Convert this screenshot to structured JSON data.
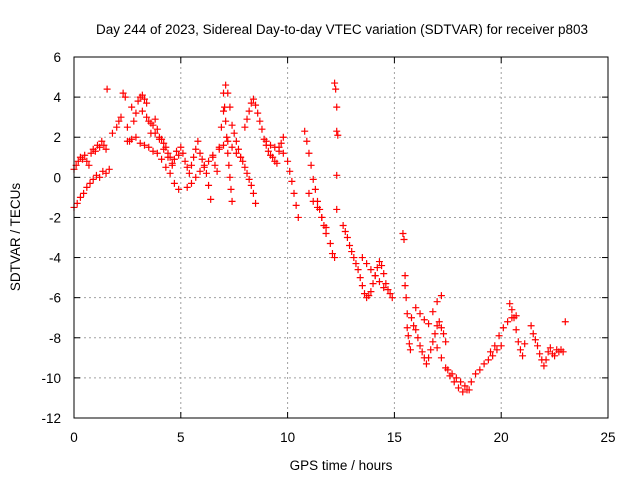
{
  "chart_data": {
    "type": "scatter",
    "title": "Day 244 of 2023, Sidereal Day-to-day VTEC variation (SDTVAR) for receiver p803",
    "xlabel": "GPS time / hours",
    "ylabel": "SDTVAR / TECUs",
    "xlim": [
      0,
      25
    ],
    "ylim": [
      -12,
      6
    ],
    "xticks": [
      0,
      5,
      10,
      15,
      20,
      25
    ],
    "yticks": [
      -12,
      -10,
      -8,
      -6,
      -4,
      -2,
      0,
      2,
      4,
      6
    ],
    "grid": true,
    "marker": "+",
    "series_color": "#ff0000",
    "series": [
      {
        "name": "SDTVAR",
        "x": [
          0.0,
          0.1,
          0.2,
          0.3,
          0.4,
          0.5,
          0.6,
          0.7,
          0.8,
          0.9,
          1.0,
          1.1,
          1.2,
          1.3,
          1.4,
          1.5,
          0.0,
          0.15,
          0.3,
          0.45,
          0.6,
          0.75,
          0.9,
          1.05,
          1.2,
          1.35,
          1.5,
          1.65,
          1.55,
          1.8,
          2.0,
          2.1,
          2.2,
          2.3,
          2.4,
          2.5,
          2.6,
          2.7,
          2.8,
          2.9,
          3.0,
          3.1,
          3.2,
          3.3,
          3.4,
          3.5,
          3.6,
          3.7,
          3.8,
          3.9,
          4.0,
          4.1,
          4.2,
          4.3,
          4.4,
          4.5,
          4.6,
          4.7,
          4.8,
          4.9,
          2.5,
          2.7,
          2.9,
          3.1,
          3.3,
          3.5,
          3.7,
          3.9,
          4.1,
          4.3,
          4.5,
          4.7,
          4.9,
          3.2,
          3.4,
          3.6,
          3.8,
          4.0,
          4.2,
          4.4,
          4.6,
          5.0,
          5.1,
          5.2,
          5.3,
          5.4,
          5.5,
          5.6,
          5.7,
          5.8,
          5.9,
          6.0,
          6.1,
          6.2,
          6.3,
          6.4,
          5.3,
          5.5,
          5.7,
          5.9,
          6.1,
          6.3,
          6.5,
          6.5,
          6.6,
          6.7,
          6.8,
          6.9,
          7.0,
          7.1,
          7.2,
          7.3,
          7.4,
          7.5,
          7.6,
          7.7,
          7.8,
          7.9,
          8.0,
          8.1,
          8.2,
          8.3,
          8.4,
          8.5,
          7.0,
          7.05,
          7.1,
          7.15,
          7.2,
          7.25,
          7.3,
          7.35,
          7.4,
          6.8,
          7.0,
          7.2,
          7.4,
          7.6,
          7.8,
          8.0,
          8.1,
          8.2,
          8.3,
          8.4,
          8.5,
          8.6,
          8.7,
          8.8,
          8.9,
          9.0,
          9.1,
          9.2,
          9.3,
          9.4,
          9.5,
          9.6,
          9.7,
          9.8,
          9.0,
          9.2,
          9.4,
          9.6,
          9.8,
          10.0,
          10.1,
          10.2,
          10.3,
          10.4,
          10.5,
          10.8,
          10.9,
          11.0,
          11.1,
          11.2,
          11.3,
          11.4,
          11.5,
          11.6,
          11.7,
          11.8,
          11.0,
          11.2,
          11.4,
          11.6,
          11.8,
          12.0,
          12.1,
          12.2,
          12.2,
          12.25,
          12.3,
          12.3,
          12.35,
          12.3,
          12.3,
          12.6,
          12.7,
          12.8,
          12.9,
          13.0,
          13.1,
          13.2,
          13.3,
          13.4,
          13.5,
          13.6,
          13.7,
          13.8,
          13.9,
          14.0,
          14.1,
          14.2,
          14.3,
          14.4,
          14.5,
          14.6,
          14.7,
          14.8,
          14.9,
          13.5,
          13.7,
          13.9,
          14.1,
          14.3,
          14.5,
          15.4,
          15.45,
          15.5,
          15.5,
          15.55,
          15.6,
          15.6,
          15.65,
          15.7,
          15.75,
          15.8,
          15.9,
          16.0,
          16.1,
          16.2,
          16.3,
          16.4,
          16.5,
          16.6,
          16.7,
          16.8,
          16.9,
          17.0,
          17.1,
          17.2,
          17.3,
          17.4,
          16.0,
          16.2,
          16.4,
          16.6,
          16.8,
          17.0,
          17.2,
          17.0,
          17.2,
          17.4,
          17.6,
          17.8,
          18.0,
          18.2,
          18.4,
          18.6,
          18.8,
          19.0,
          19.2,
          19.4,
          19.6,
          19.8,
          20.0,
          17.5,
          17.7,
          17.9,
          18.1,
          18.3,
          18.5,
          19.5,
          19.7,
          19.9,
          20.1,
          20.3,
          20.5,
          20.7,
          20.4,
          20.5,
          20.6,
          20.7,
          20.8,
          20.9,
          21.0,
          21.1,
          21.4,
          21.5,
          21.6,
          21.7,
          21.8,
          21.9,
          22.0,
          22.1,
          22.2,
          22.3,
          22.4,
          22.5,
          22.6,
          22.7,
          22.8,
          22.9,
          23.0
        ],
        "y": [
          0.4,
          0.6,
          0.8,
          1.0,
          0.9,
          1.1,
          0.8,
          0.6,
          1.2,
          1.4,
          1.3,
          1.6,
          1.5,
          1.8,
          1.6,
          1.4,
          -1.5,
          -1.3,
          -1.0,
          -0.8,
          -0.5,
          -0.3,
          -0.1,
          0.1,
          0.0,
          0.3,
          0.2,
          0.4,
          4.4,
          2.2,
          2.5,
          2.8,
          3.0,
          4.2,
          4.0,
          2.5,
          1.8,
          3.5,
          2.8,
          3.2,
          3.8,
          4.0,
          4.1,
          3.9,
          3.7,
          2.8,
          2.2,
          2.6,
          2.9,
          2.4,
          2.0,
          1.9,
          1.7,
          1.5,
          1.2,
          1.0,
          0.6,
          0.9,
          1.3,
          1.1,
          1.8,
          1.9,
          2.0,
          1.7,
          1.6,
          1.5,
          1.3,
          1.2,
          0.9,
          0.5,
          0.2,
          -0.3,
          -0.6,
          3.3,
          3.0,
          2.7,
          2.2,
          1.9,
          1.4,
          1.0,
          0.7,
          1.5,
          1.2,
          0.8,
          0.5,
          0.2,
          0.6,
          1.0,
          1.4,
          1.8,
          1.2,
          0.9,
          0.5,
          0.2,
          -0.4,
          -1.1,
          -0.5,
          -0.3,
          0.0,
          0.3,
          0.6,
          0.8,
          1.1,
          1.0,
          0.6,
          0.3,
          1.5,
          2.5,
          3.3,
          4.6,
          4.2,
          3.5,
          2.6,
          2.2,
          1.8,
          1.4,
          1.0,
          0.8,
          0.5,
          0.2,
          -0.1,
          -0.4,
          -0.8,
          -1.3,
          4.2,
          3.5,
          2.8,
          2.0,
          1.2,
          0.6,
          0.0,
          -0.6,
          -1.2,
          1.4,
          1.6,
          1.8,
          1.5,
          1.2,
          1.0,
          2.5,
          2.9,
          3.3,
          3.7,
          3.9,
          3.6,
          3.2,
          2.8,
          2.4,
          1.9,
          1.6,
          1.3,
          1.1,
          1.0,
          0.8,
          0.7,
          1.5,
          1.7,
          2.0,
          1.8,
          1.6,
          1.5,
          1.3,
          1.2,
          0.8,
          0.3,
          -0.2,
          -0.8,
          -1.4,
          -2.0,
          2.3,
          1.8,
          1.2,
          0.6,
          -0.1,
          -0.6,
          -1.2,
          -1.6,
          -2.0,
          -2.4,
          -2.8,
          -0.8,
          -1.2,
          -1.5,
          -2.0,
          -2.5,
          -3.3,
          -3.8,
          -4.0,
          4.7,
          4.4,
          3.5,
          2.3,
          2.1,
          0.1,
          -1.6,
          -2.4,
          -2.7,
          -3.0,
          -3.4,
          -3.7,
          -4.0,
          -4.3,
          -4.6,
          -5.0,
          -5.4,
          -5.8,
          -6.0,
          -5.9,
          -5.7,
          -5.3,
          -4.9,
          -4.5,
          -4.2,
          -4.4,
          -4.8,
          -5.3,
          -5.6,
          -5.8,
          -6.0,
          -4.0,
          -4.3,
          -4.6,
          -4.9,
          -5.2,
          -5.5,
          -2.8,
          -3.1,
          -4.9,
          -5.4,
          -6.0,
          -6.8,
          -7.5,
          -7.9,
          -8.3,
          -8.6,
          -7.0,
          -7.4,
          -7.6,
          -8.0,
          -8.4,
          -8.7,
          -9.0,
          -9.3,
          -9.0,
          -8.6,
          -8.2,
          -7.8,
          -7.4,
          -7.2,
          -7.5,
          -7.8,
          -8.2,
          -6.5,
          -6.8,
          -7.1,
          -7.3,
          -6.7,
          -6.2,
          -5.9,
          -8.5,
          -9.0,
          -9.5,
          -9.9,
          -10.2,
          -10.5,
          -10.7,
          -10.6,
          -10.2,
          -9.8,
          -9.6,
          -9.3,
          -9.1,
          -8.9,
          -8.6,
          -8.4,
          -9.6,
          -9.8,
          -10.0,
          -10.2,
          -10.4,
          -10.6,
          -8.7,
          -8.4,
          -7.9,
          -7.5,
          -7.2,
          -7.0,
          -6.9,
          -6.3,
          -6.6,
          -7.0,
          -7.6,
          -8.2,
          -8.6,
          -8.9,
          -8.3,
          -7.4,
          -7.8,
          -8.1,
          -8.4,
          -8.8,
          -9.1,
          -9.4,
          -9.1,
          -8.7,
          -8.5,
          -8.8,
          -8.9,
          -8.6,
          -8.7,
          -8.6,
          -8.7,
          -7.2
        ]
      }
    ]
  }
}
